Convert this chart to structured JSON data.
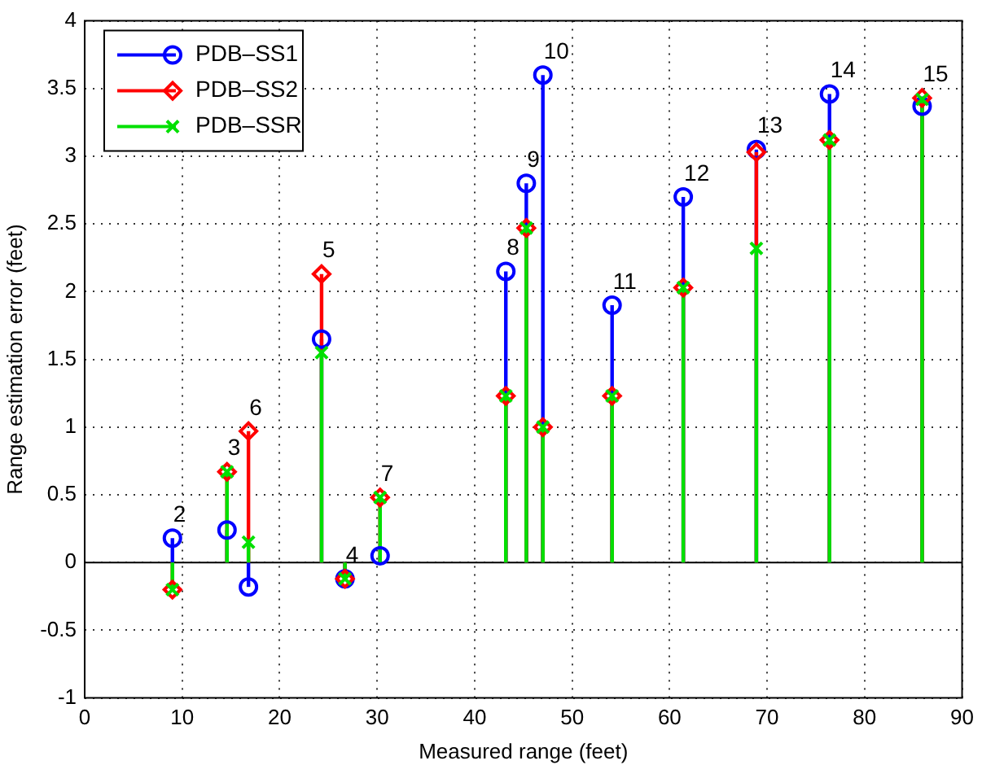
{
  "chart_data": {
    "type": "lollipop",
    "xlabel": "Measured range (feet)",
    "ylabel": "Range estimation error (feet)",
    "x": [
      9,
      14.6,
      16.8,
      24.3,
      26.7,
      30.3,
      43.2,
      45.3,
      47,
      54.1,
      61.4,
      68.9,
      76.4,
      85.9
    ],
    "series": [
      {
        "name": "PDB–SS1",
        "color": "#0000ff",
        "marker": "circle",
        "values": [
          0.18,
          0.24,
          -0.18,
          1.65,
          -0.12,
          0.05,
          2.15,
          2.8,
          3.6,
          1.9,
          2.7,
          3.05,
          3.46,
          3.37
        ]
      },
      {
        "name": "PDB–SS2",
        "color": "#ff0000",
        "marker": "diamond",
        "values": [
          -0.2,
          0.67,
          0.97,
          2.13,
          -0.12,
          0.48,
          1.23,
          2.47,
          1.0,
          1.23,
          2.03,
          3.03,
          3.12,
          3.43
        ]
      },
      {
        "name": "PDB–SSR",
        "color": "#00e000",
        "marker": "cross",
        "values": [
          -0.2,
          0.67,
          0.15,
          1.55,
          -0.12,
          0.48,
          1.23,
          2.47,
          1.0,
          1.23,
          2.03,
          2.32,
          3.12,
          3.42
        ]
      }
    ],
    "annotations": [
      {
        "text": "2",
        "x": 9,
        "y": 0.18
      },
      {
        "text": "3",
        "x": 14.6,
        "y": 0.67
      },
      {
        "text": "6",
        "x": 16.8,
        "y": 0.97
      },
      {
        "text": "5",
        "x": 24.3,
        "y": 2.13
      },
      {
        "text": "4",
        "x": 26.7,
        "y": -0.12
      },
      {
        "text": "7",
        "x": 30.3,
        "y": 0.48
      },
      {
        "text": "8",
        "x": 43.2,
        "y": 2.15
      },
      {
        "text": "9",
        "x": 45.3,
        "y": 2.8
      },
      {
        "text": "10",
        "x": 47,
        "y": 3.6
      },
      {
        "text": "11",
        "x": 54.1,
        "y": 1.9
      },
      {
        "text": "12",
        "x": 61.4,
        "y": 2.7
      },
      {
        "text": "13",
        "x": 68.9,
        "y": 3.05
      },
      {
        "text": "14",
        "x": 76.4,
        "y": 3.46
      },
      {
        "text": "15",
        "x": 85.9,
        "y": 3.43
      }
    ],
    "xlim": [
      0,
      90
    ],
    "xticks": [
      0,
      10,
      20,
      30,
      40,
      50,
      60,
      70,
      80,
      90
    ],
    "ylim": [
      -1,
      4
    ],
    "yticks": [
      -1,
      -0.5,
      0,
      0.5,
      1,
      1.5,
      2,
      2.5,
      3,
      3.5,
      4
    ],
    "grid": true,
    "legend": "top left"
  }
}
